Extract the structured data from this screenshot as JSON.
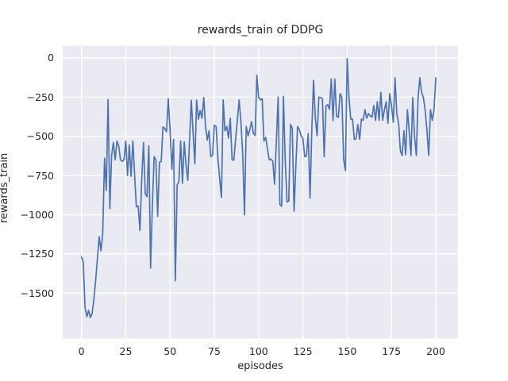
{
  "chart_data": {
    "type": "line",
    "title": "rewards_train of DDPG",
    "xlabel": "episodes",
    "ylabel": "rewards_train",
    "legend": "none",
    "grid": true,
    "x_start": 0,
    "x_step": 1,
    "values": [
      -1270,
      -1300,
      -1590,
      -1650,
      -1610,
      -1655,
      -1630,
      -1540,
      -1420,
      -1280,
      -1140,
      -1230,
      -1120,
      -640,
      -845,
      -265,
      -960,
      -620,
      -540,
      -650,
      -530,
      -560,
      -650,
      -660,
      -650,
      -530,
      -750,
      -555,
      -755,
      -530,
      -750,
      -950,
      -945,
      -1100,
      -780,
      -540,
      -865,
      -885,
      -560,
      -1340,
      -950,
      -630,
      -650,
      -1010,
      -665,
      -660,
      -440,
      -450,
      -470,
      -260,
      -455,
      -710,
      -520,
      -1420,
      -810,
      -790,
      -530,
      -800,
      -535,
      -680,
      -780,
      -525,
      -270,
      -480,
      -675,
      -268,
      -390,
      -335,
      -385,
      -252,
      -435,
      -525,
      -465,
      -630,
      -620,
      -430,
      -437,
      -640,
      -765,
      -890,
      -268,
      -465,
      -437,
      -512,
      -385,
      -650,
      -652,
      -520,
      -392,
      -268,
      -408,
      -617,
      -1000,
      -437,
      -497,
      -458,
      -407,
      -480,
      -495,
      -110,
      -253,
      -268,
      -260,
      -530,
      -507,
      -582,
      -650,
      -645,
      -660,
      -805,
      -525,
      -250,
      -935,
      -945,
      -245,
      -645,
      -920,
      -912,
      -423,
      -447,
      -978,
      -690,
      -437,
      -460,
      -497,
      -512,
      -630,
      -625,
      -482,
      -894,
      -465,
      -143,
      -385,
      -497,
      -250,
      -253,
      -260,
      -630,
      -305,
      -298,
      -328,
      -135,
      -400,
      -135,
      -372,
      -380,
      -228,
      -253,
      -650,
      -718,
      -5,
      -253,
      -390,
      -390,
      -520,
      -515,
      -425,
      -520,
      -390,
      -398,
      -330,
      -385,
      -355,
      -370,
      -378,
      -304,
      -398,
      -279,
      -398,
      -220,
      -398,
      -330,
      -280,
      -417,
      -228,
      -304,
      -410,
      -127,
      -355,
      -417,
      -591,
      -623,
      -465,
      -617,
      -330,
      -465,
      -623,
      -253,
      -497,
      -623,
      -253,
      -127,
      -220,
      -253,
      -330,
      -465,
      -623,
      -330,
      -398,
      -330,
      -127
    ],
    "xticks": [
      0,
      25,
      50,
      75,
      100,
      125,
      150,
      175,
      200
    ],
    "xtick_labels": [
      "0",
      "25",
      "50",
      "75",
      "100",
      "125",
      "150",
      "175",
      "200"
    ],
    "yticks": [
      0,
      -250,
      -500,
      -750,
      -1000,
      -1250,
      -1500
    ],
    "ytick_labels": [
      "0",
      "−250",
      "−500",
      "−750",
      "−1000",
      "−1250",
      "−1500"
    ],
    "xlim": [
      -10.6,
      212.4
    ],
    "ylim": [
      -1789,
      78
    ],
    "line_color": "#4c72b0",
    "axes_background": "#eaeaf2",
    "grid_color": "#ffffff",
    "figure_background": "#ffffff",
    "text_color": "#262626"
  }
}
